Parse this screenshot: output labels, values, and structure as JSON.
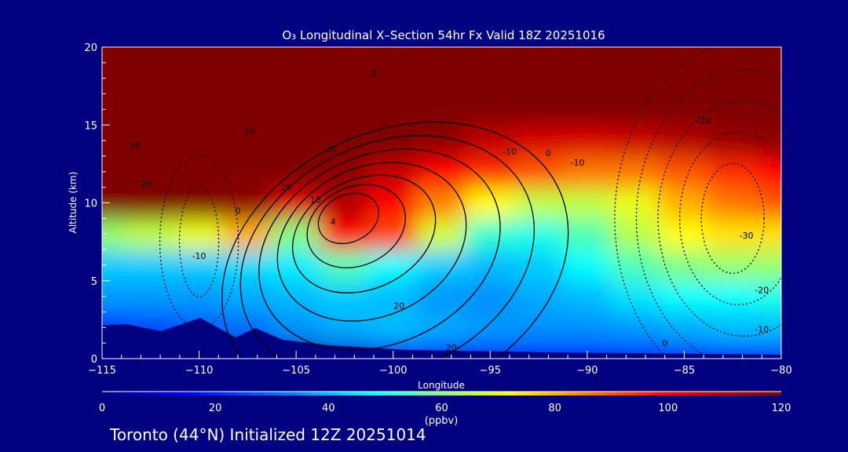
{
  "chart_data": {
    "type": "heatmap",
    "title": "O₃ Longitudinal X–Section 54hr  Fx Valid 18Z 20251016",
    "xlabel": "Longitude",
    "ylabel": "Altitude (km)",
    "xlim": [
      -115,
      -80
    ],
    "ylim": [
      0,
      20
    ],
    "x_ticks": [
      -115,
      -110,
      -105,
      -100,
      -95,
      -90,
      -85,
      -80
    ],
    "x_tick_labels": [
      "−115",
      "−110",
      "−105",
      "−100",
      "−95",
      "−90",
      "−85",
      "−80"
    ],
    "y_ticks": [
      0,
      5,
      10,
      15,
      20
    ],
    "y_tick_labels": [
      "0",
      "5",
      "10",
      "15",
      "20"
    ],
    "lon": [
      -115,
      -112.5,
      -110,
      -107.5,
      -105,
      -102.5,
      -100,
      -97.5,
      -95,
      -92.5,
      -90,
      -87.5,
      -85,
      -82.5,
      -80
    ],
    "alt": [
      0,
      2,
      4,
      6,
      8,
      10,
      12,
      14,
      16,
      18,
      20
    ],
    "ozone_ppbv": [
      [
        3,
        3,
        3,
        3,
        3,
        8,
        12,
        15,
        18,
        18,
        18,
        18,
        20,
        20,
        20
      ],
      [
        22,
        25,
        28,
        30,
        35,
        38,
        40,
        38,
        36,
        35,
        35,
        36,
        38,
        40,
        40
      ],
      [
        36,
        36,
        36,
        38,
        40,
        42,
        40,
        36,
        35,
        38,
        40,
        45,
        48,
        48,
        50
      ],
      [
        42,
        42,
        42,
        44,
        46,
        55,
        48,
        42,
        40,
        42,
        48,
        55,
        60,
        62,
        62
      ],
      [
        62,
        66,
        70,
        80,
        60,
        100,
        92,
        68,
        52,
        50,
        55,
        65,
        72,
        75,
        75
      ],
      [
        120,
        120,
        120,
        118,
        105,
        112,
        100,
        85,
        72,
        66,
        66,
        70,
        80,
        86,
        90
      ],
      [
        120,
        120,
        120,
        120,
        120,
        118,
        110,
        100,
        95,
        90,
        86,
        86,
        90,
        95,
        100
      ],
      [
        120,
        120,
        120,
        120,
        120,
        120,
        120,
        118,
        110,
        106,
        106,
        108,
        112,
        116,
        118
      ],
      [
        120,
        120,
        120,
        120,
        120,
        120,
        120,
        120,
        120,
        120,
        120,
        120,
        120,
        120,
        120
      ],
      [
        120,
        120,
        120,
        120,
        120,
        120,
        120,
        120,
        120,
        120,
        120,
        120,
        120,
        120,
        120
      ],
      [
        120,
        120,
        120,
        120,
        120,
        120,
        120,
        120,
        120,
        120,
        120,
        120,
        120,
        120,
        120
      ]
    ],
    "contour_labels": [
      {
        "text": "0",
        "lon": -101,
        "alt": 18.3
      },
      {
        "text": "10",
        "lon": -107.4,
        "alt": 14.6
      },
      {
        "text": "20",
        "lon": -103.2,
        "alt": 13.5
      },
      {
        "text": "20",
        "lon": -105.5,
        "alt": 11.0
      },
      {
        "text": "10",
        "lon": -104.0,
        "alt": 10.2
      },
      {
        "text": "4",
        "lon": -103.1,
        "alt": 8.8
      },
      {
        "text": "0",
        "lon": -108.0,
        "alt": 9.5
      },
      {
        "text": "20",
        "lon": -99.7,
        "alt": 3.4
      },
      {
        "text": "20",
        "lon": -97.0,
        "alt": 0.7
      },
      {
        "text": "-10",
        "lon": -110.0,
        "alt": 6.6
      },
      {
        "text": "-10",
        "lon": -113.4,
        "alt": 13.7
      },
      {
        "text": "-20",
        "lon": -112.8,
        "alt": 11.2
      },
      {
        "text": "-10",
        "lon": -94.0,
        "alt": 13.3
      },
      {
        "text": "0",
        "lon": -92.0,
        "alt": 13.2
      },
      {
        "text": "-10",
        "lon": -90.5,
        "alt": 12.6
      },
      {
        "text": "-20",
        "lon": -84.0,
        "alt": 15.3
      },
      {
        "text": "-30",
        "lon": -81.8,
        "alt": 7.9
      },
      {
        "text": "-20",
        "lon": -81.0,
        "alt": 4.4
      },
      {
        "text": "-10",
        "lon": -81.0,
        "alt": 1.9
      },
      {
        "text": "0",
        "lon": -86.0,
        "alt": 1.0
      }
    ],
    "colorbar": {
      "range": [
        0,
        120
      ],
      "ticks": [
        "0",
        "20",
        "40",
        "60",
        "80",
        "100",
        "120"
      ],
      "units": "(ppbv)"
    }
  },
  "footer": "Toronto (44°N) Initialized 12Z 20251014",
  "colors": {
    "background": "#000080",
    "colormap": [
      "#000080",
      "#0000ff",
      "#0090ff",
      "#00ffff",
      "#80ff80",
      "#ffff00",
      "#ff8000",
      "#ff0000",
      "#800000"
    ]
  }
}
